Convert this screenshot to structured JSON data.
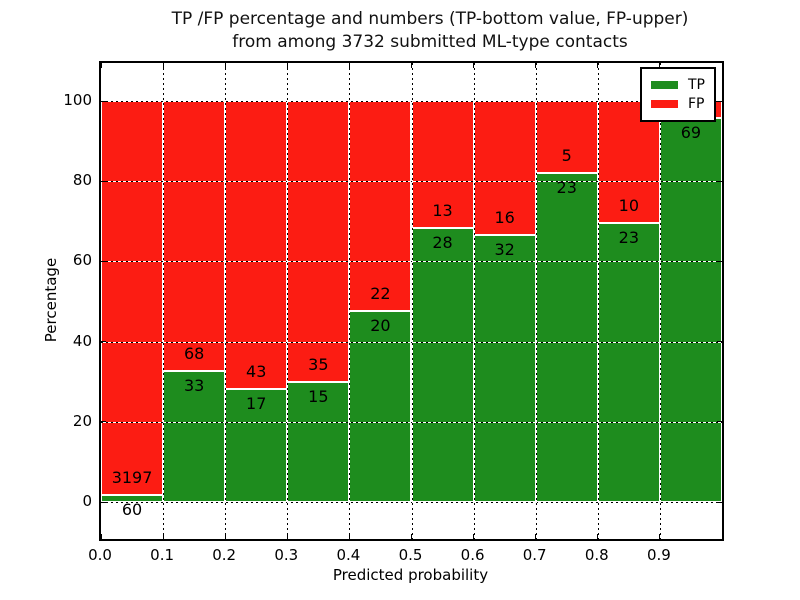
{
  "title": {
    "line1": "TP /FP percentage and numbers (TP-bottom value, FP-upper)",
    "line2": "from among 3732 submitted ML-type contacts"
  },
  "y_axis": {
    "label": "Percentage",
    "tick_labels": [
      "0",
      "20",
      "40",
      "60",
      "80",
      "100"
    ]
  },
  "x_axis": {
    "label": "Predicted probability",
    "tick_labels": [
      "0.0",
      "0.1",
      "0.2",
      "0.3",
      "0.4",
      "0.5",
      "0.6",
      "0.7",
      "0.8",
      "0.9"
    ]
  },
  "legend": {
    "items": [
      {
        "label": "TP",
        "color": "#1e8c1e"
      },
      {
        "label": "FP",
        "color": "#fc1c13"
      }
    ]
  },
  "colors": {
    "tp": "#1e8c1e",
    "fp": "#fc1c13",
    "grid": "#000000",
    "bar_edge": "#ffffff"
  },
  "chart_data": {
    "type": "bar",
    "stacked": true,
    "unit": "percent_of_bin",
    "title": "TP /FP percentage and numbers (TP-bottom value, FP-upper) from among 3732 submitted ML-type contacts",
    "xlabel": "Predicted probability",
    "ylabel": "Percentage",
    "total_submitted": 3732,
    "x_bin_edges": [
      0.0,
      0.1,
      0.2,
      0.3,
      0.4,
      0.5,
      0.6,
      0.7,
      0.8,
      0.9,
      1.0
    ],
    "series": [
      {
        "name": "TP",
        "counts": [
          60,
          33,
          17,
          15,
          20,
          28,
          32,
          23,
          23,
          69
        ]
      },
      {
        "name": "FP",
        "counts": [
          3197,
          68,
          43,
          35,
          22,
          13,
          16,
          5,
          10,
          null
        ]
      }
    ],
    "tp_percent": [
      1.8,
      32.7,
      28.3,
      30.0,
      47.6,
      68.3,
      66.7,
      82.1,
      69.7,
      95.8
    ],
    "tp_labels": [
      "60",
      "33",
      "17",
      "15",
      "20",
      "28",
      "32",
      "23",
      "23",
      "69"
    ],
    "fp_labels": [
      "3197",
      "68",
      "43",
      "35",
      "22",
      "13",
      "16",
      "5",
      "10",
      ""
    ],
    "yticks": [
      0,
      20,
      40,
      60,
      80,
      100
    ],
    "ylim_shown": [
      -9,
      110
    ],
    "grid": true,
    "grid_style": "dotted",
    "legend_position": "upper right"
  }
}
